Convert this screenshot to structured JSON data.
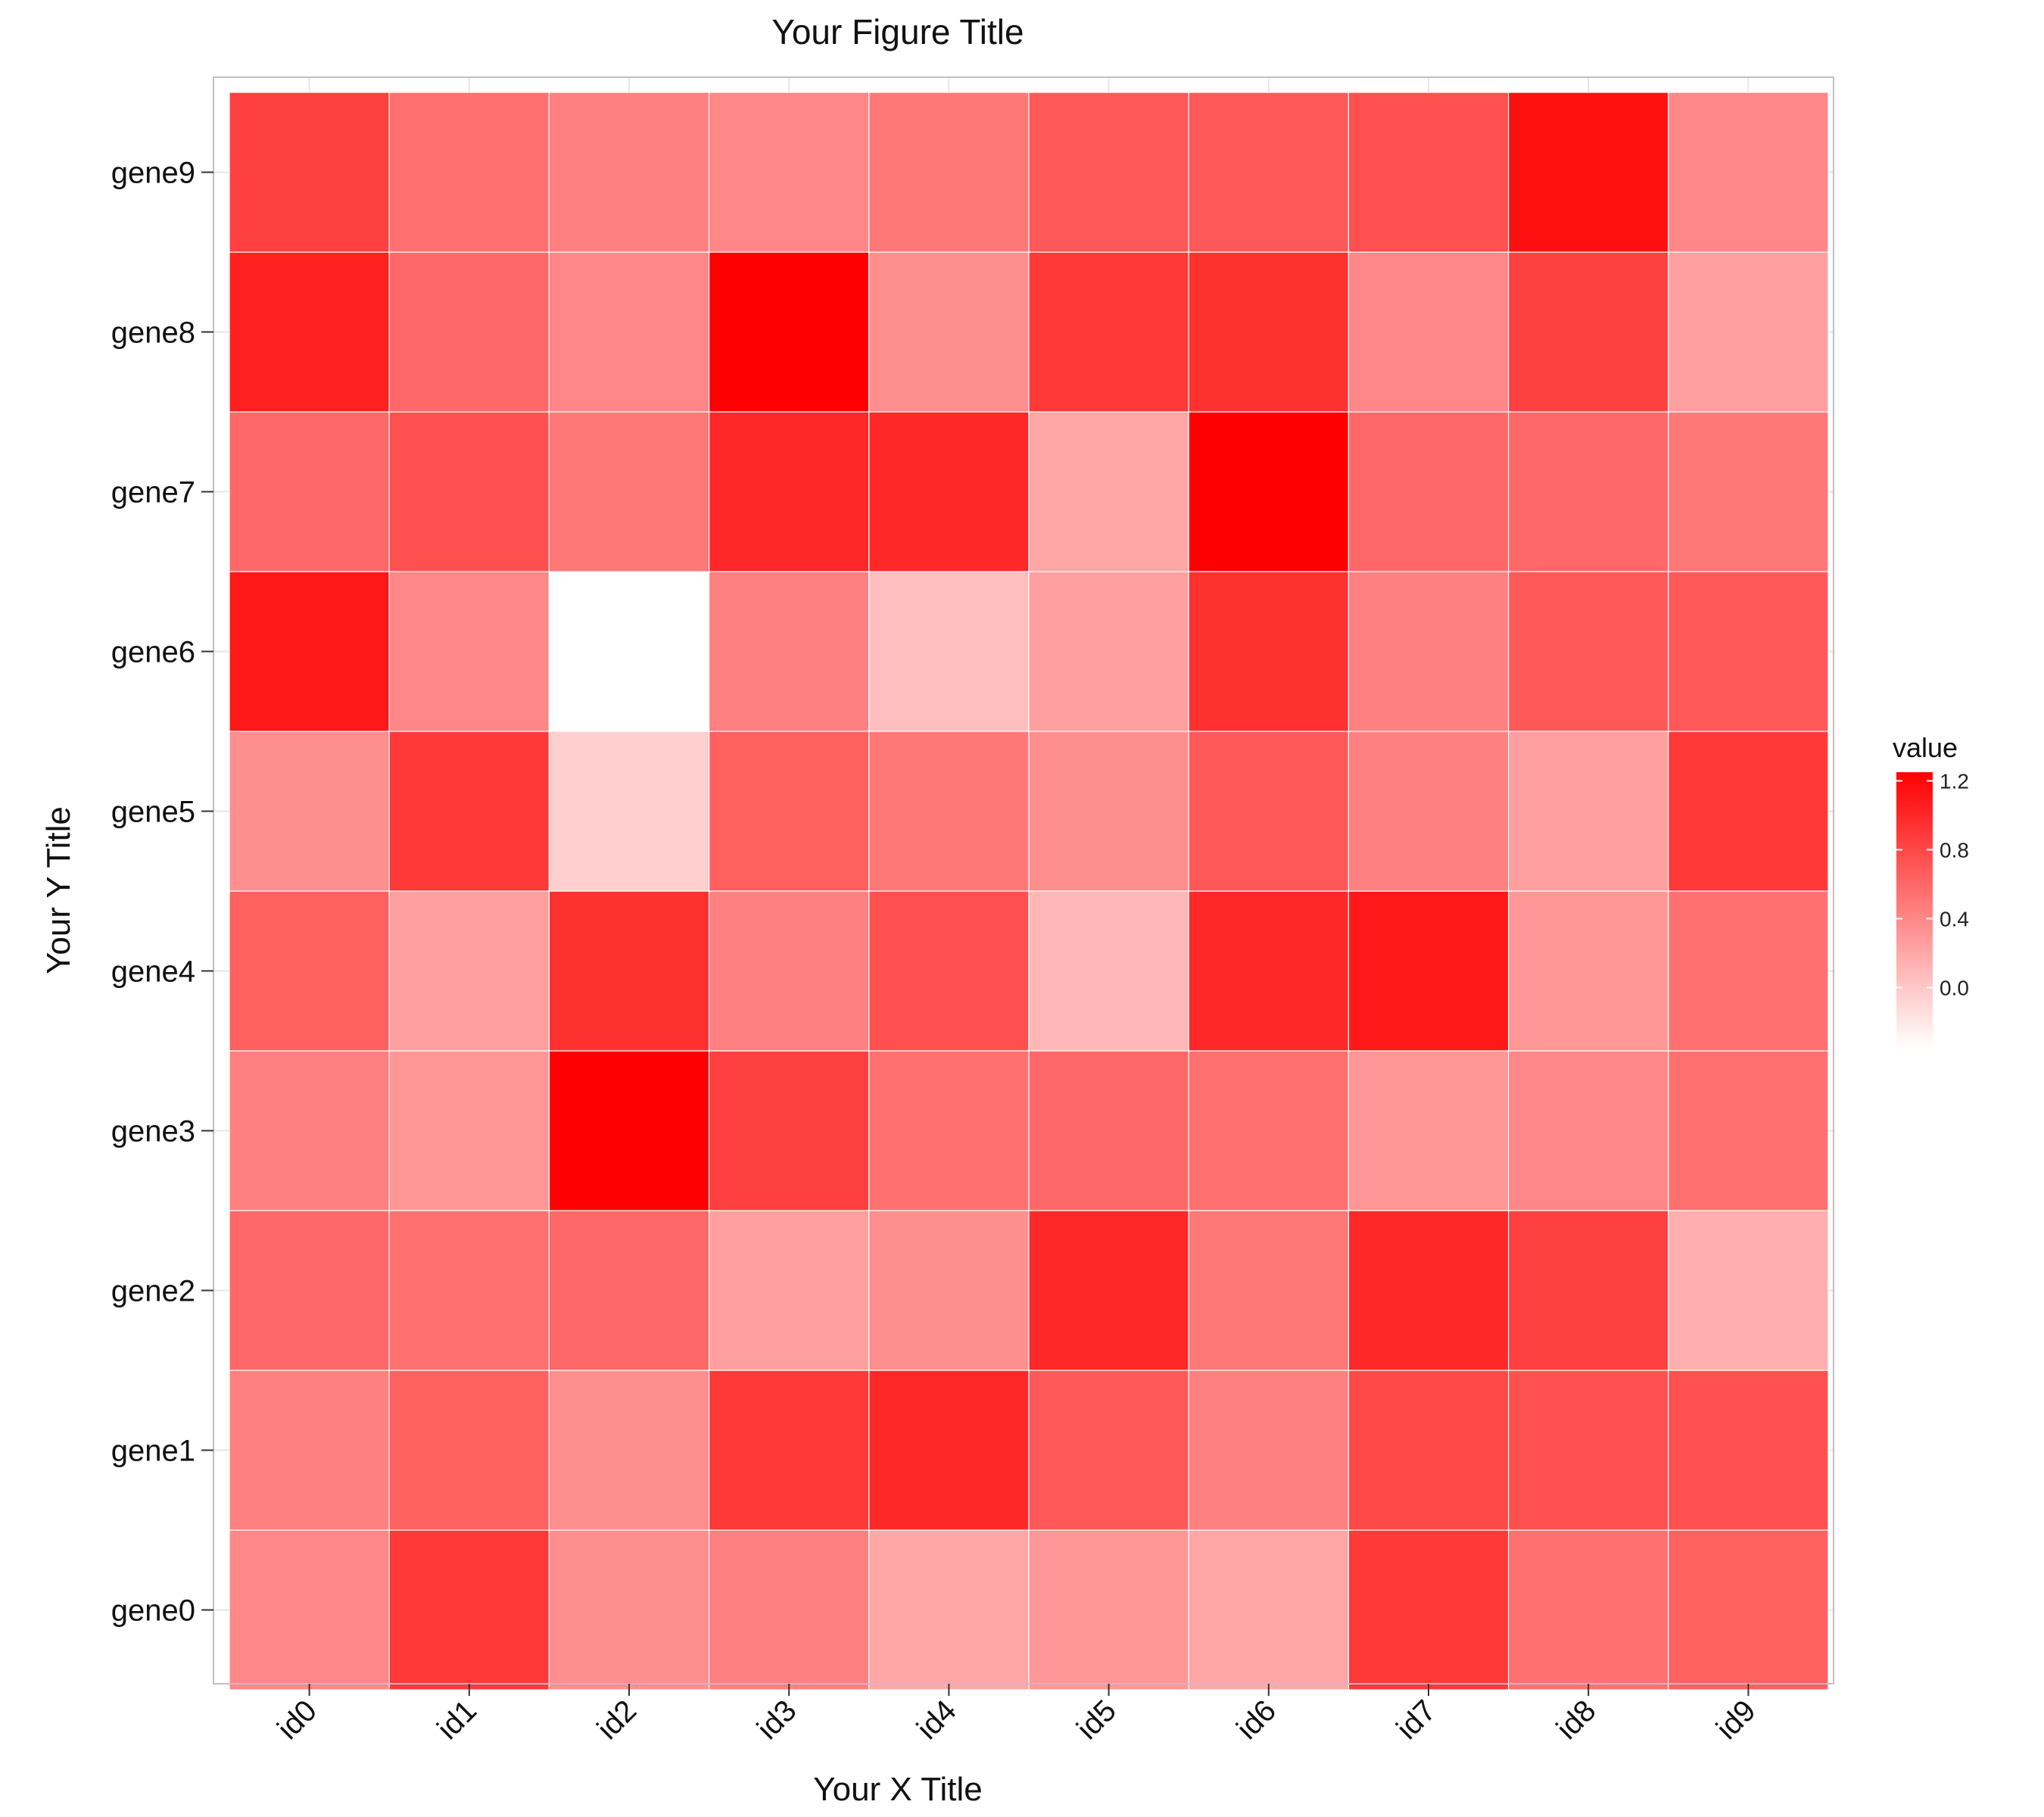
{
  "chart_data": {
    "type": "heatmap",
    "title": "Your Figure Title",
    "xlabel": "Your X Title",
    "ylabel": "Your Y Title",
    "x_categories": [
      "id0",
      "id1",
      "id2",
      "id3",
      "id4",
      "id5",
      "id6",
      "id7",
      "id8",
      "id9"
    ],
    "y_categories": [
      "gene0",
      "gene1",
      "gene2",
      "gene3",
      "gene4",
      "gene5",
      "gene6",
      "gene7",
      "gene8",
      "gene9"
    ],
    "values": [
      [
        0.4,
        0.9,
        0.35,
        0.45,
        0.2,
        0.3,
        0.2,
        0.9,
        0.55,
        0.65
      ],
      [
        0.45,
        0.65,
        0.35,
        0.9,
        1.0,
        0.7,
        0.45,
        0.8,
        0.75,
        0.75
      ],
      [
        0.6,
        0.55,
        0.6,
        0.25,
        0.35,
        1.0,
        0.5,
        1.0,
        0.85,
        0.15
      ],
      [
        0.45,
        0.3,
        1.25,
        0.85,
        0.55,
        0.6,
        0.55,
        0.3,
        0.4,
        0.55
      ],
      [
        0.65,
        0.25,
        0.95,
        0.45,
        0.75,
        0.1,
        1.0,
        1.1,
        0.3,
        0.55
      ],
      [
        0.35,
        0.9,
        -0.05,
        0.65,
        0.5,
        0.35,
        0.7,
        0.45,
        0.25,
        0.9
      ],
      [
        1.1,
        0.4,
        -0.35,
        0.45,
        0.05,
        0.25,
        0.95,
        0.45,
        0.7,
        0.7
      ],
      [
        0.6,
        0.75,
        0.5,
        1.0,
        1.0,
        0.2,
        1.25,
        0.6,
        0.6,
        0.5
      ],
      [
        1.05,
        0.6,
        0.4,
        1.25,
        0.35,
        0.9,
        0.95,
        0.4,
        0.85,
        0.25
      ],
      [
        0.85,
        0.55,
        0.45,
        0.4,
        0.5,
        0.7,
        0.7,
        0.75,
        1.15,
        0.4
      ]
    ],
    "value_range": [
      -0.35,
      1.25
    ],
    "colorscale": {
      "low": "#ffffff",
      "high": "#ff0000"
    },
    "legend": {
      "title": "value",
      "placement": "right",
      "ticks": [
        1.2,
        0.8,
        0.4,
        0.0
      ],
      "tick_labels": [
        "1.2",
        "0.8",
        "0.4",
        "0.0"
      ]
    },
    "grid": true
  },
  "colors": {
    "panel_border": "#c0c0c0",
    "gridline": "#e6e6e6",
    "tile_border": "#ffffff"
  }
}
